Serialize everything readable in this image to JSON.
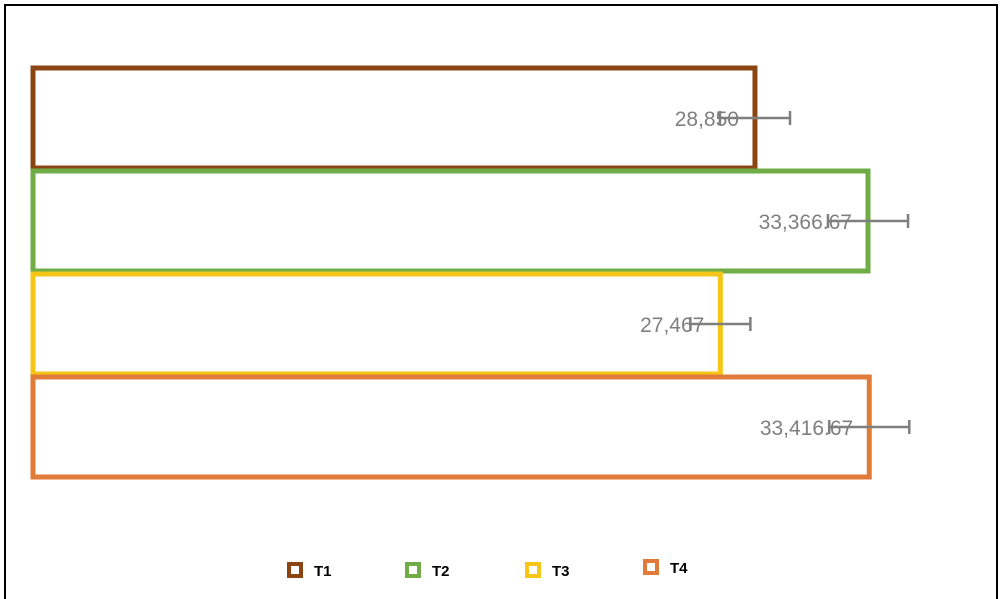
{
  "chart_data": {
    "type": "bar",
    "orientation": "horizontal",
    "categories": [
      "T1",
      "T2",
      "T3",
      "T4"
    ],
    "values": [
      28850,
      33366.67,
      27466.67,
      33416.67
    ],
    "value_labels": [
      "28,850",
      "33,366.67",
      "27,467",
      "33,416.67"
    ],
    "error": [
      1400,
      1600,
      1200,
      1600
    ],
    "colors": [
      "#8b4513",
      "#70ad47",
      "#f5c518",
      "#e07b39"
    ],
    "xlim": [
      0,
      40000
    ],
    "grid": false,
    "legend_position": "bottom",
    "legend": [
      {
        "label": "T1",
        "color": "#8b4513"
      },
      {
        "label": "T2",
        "color": "#70ad47"
      },
      {
        "label": "T3",
        "color": "#f5c518"
      },
      {
        "label": "T4",
        "color": "#e07b39"
      }
    ]
  }
}
